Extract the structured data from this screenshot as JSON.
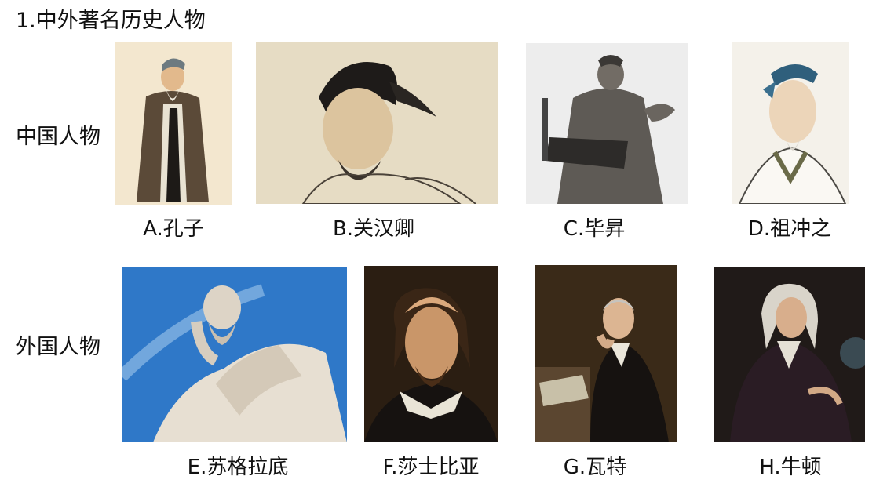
{
  "title": "1.中外著名历史人物",
  "rows": {
    "chinese": {
      "label": "中国人物"
    },
    "foreign": {
      "label": "外国人物"
    }
  },
  "figures": [
    {
      "caption": "A.孔子"
    },
    {
      "caption": "B.关汉卿"
    },
    {
      "caption": "C.毕昇"
    },
    {
      "caption": "D.祖冲之"
    },
    {
      "caption": "E.苏格拉底"
    },
    {
      "caption": "F.莎士比亚"
    },
    {
      "caption": "G.瓦特"
    },
    {
      "caption": "H.牛顿"
    }
  ]
}
